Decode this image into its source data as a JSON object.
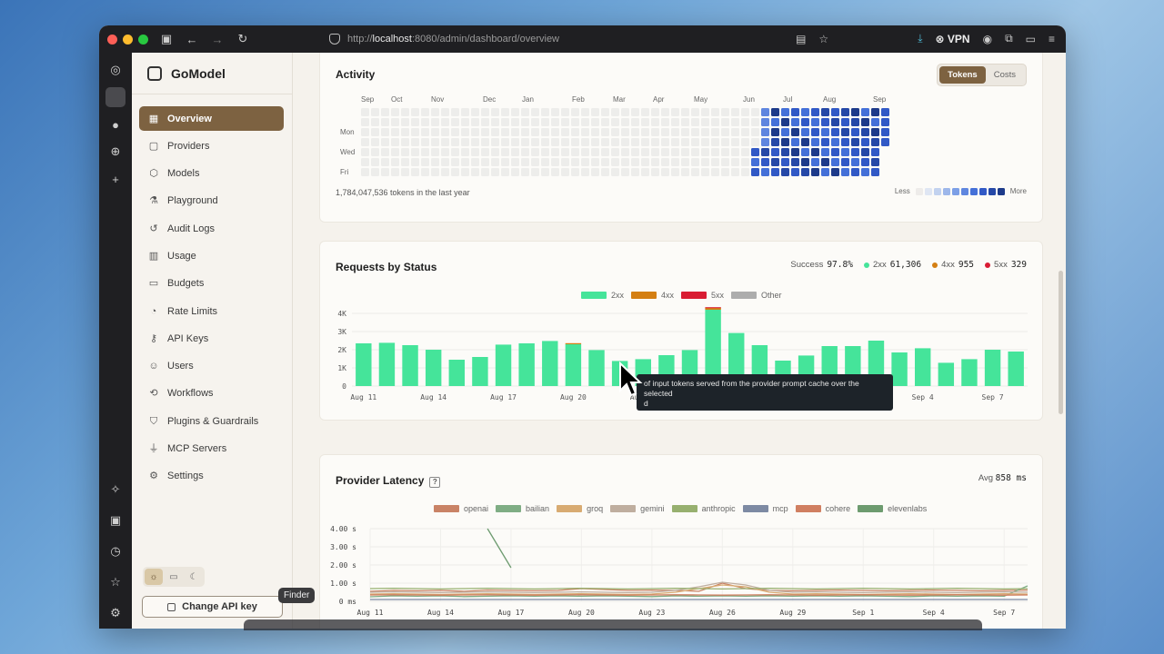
{
  "browser": {
    "url_prefix": "http://",
    "url_host": "localhost",
    "url_rest": ":8080/admin/dashboard/overview",
    "vpn_label": "VPN"
  },
  "app": {
    "name": "GoModel"
  },
  "sidebar": {
    "items": [
      {
        "label": "Overview",
        "icon": "grid-icon",
        "glyph": "▦",
        "active": true
      },
      {
        "label": "Providers",
        "icon": "server-icon",
        "glyph": "▢"
      },
      {
        "label": "Models",
        "icon": "cube-icon",
        "glyph": "⬡"
      },
      {
        "label": "Playground",
        "icon": "flask-icon",
        "glyph": "⚗"
      },
      {
        "label": "Audit Logs",
        "icon": "history-icon",
        "glyph": "↺"
      },
      {
        "label": "Usage",
        "icon": "bar-chart-icon",
        "glyph": "▥"
      },
      {
        "label": "Budgets",
        "icon": "wallet-icon",
        "glyph": "▭"
      },
      {
        "label": "Rate Limits",
        "icon": "gauge-icon",
        "glyph": "◔"
      },
      {
        "label": "API Keys",
        "icon": "key-icon",
        "glyph": "⚷"
      },
      {
        "label": "Users",
        "icon": "users-icon",
        "glyph": "☺"
      },
      {
        "label": "Workflows",
        "icon": "workflow-icon",
        "glyph": "⟲"
      },
      {
        "label": "Plugins & Guardrails",
        "icon": "shield-icon",
        "glyph": "⛉"
      },
      {
        "label": "MCP Servers",
        "icon": "plug-icon",
        "glyph": "⏚"
      },
      {
        "label": "Settings",
        "icon": "gear-icon",
        "glyph": "⚙"
      }
    ],
    "change_api_key_label": "Change API key",
    "finder_tooltip": "Finder"
  },
  "activity": {
    "title": "Activity",
    "toggle": {
      "tokens": "Tokens",
      "costs": "Costs",
      "selected": "Tokens"
    },
    "months": [
      "Sep",
      "Oct",
      "Nov",
      "Dec",
      "Jan",
      "Feb",
      "Mar",
      "Apr",
      "May",
      "Jun",
      "Jul",
      "Aug",
      "Sep"
    ],
    "day_labels": [
      "Mon",
      "Wed",
      "Fri"
    ],
    "total_text": "1,784,047,536 tokens in the last year",
    "legend_less": "Less",
    "legend_more": "More",
    "scale_colors": [
      "#eeecea",
      "#dfe6f3",
      "#c2d2ef",
      "#9db7ea",
      "#7c9fe6",
      "#5f86df",
      "#4470d8",
      "#3159c6",
      "#2548a7",
      "#1d3a8a"
    ],
    "empty_color": "#ededeb"
  },
  "requests": {
    "title": "Requests by Status",
    "summary": {
      "success_label": "Success",
      "success_value": "97.8%",
      "s2xx_label": "2xx",
      "s2xx_value": "61,306",
      "s4xx_label": "4xx",
      "s4xx_value": "955",
      "s5xx_label": "5xx",
      "s5xx_value": "329"
    },
    "colors": {
      "2xx": "#45e49a",
      "4xx": "#d47f13",
      "5xx": "#d91c34",
      "other": "#adadad"
    },
    "tooltip_text": "of input tokens served from the provider prompt cache over the selected",
    "tooltip_tail": "d"
  },
  "latency": {
    "title": "Provider Latency",
    "help": "?",
    "avg_label": "Avg",
    "avg_value": "858 ms"
  },
  "chart_data": [
    {
      "type": "bar",
      "title": "Requests by Status",
      "legend": [
        "2xx",
        "4xx",
        "5xx",
        "Other"
      ],
      "legend_position": "top-center",
      "ylim": [
        0,
        4000
      ],
      "y_ticks": [
        "0",
        "1K",
        "2K",
        "3K",
        "4K"
      ],
      "x_tick_labels": [
        "Aug 11",
        "Aug 14",
        "Aug 17",
        "Aug 20",
        "Aug 23",
        "Aug 26",
        "Aug 29",
        "Sep 1",
        "Sep 4",
        "Sep 7"
      ],
      "series": [
        {
          "name": "2xx",
          "values": [
            2350,
            2380,
            2250,
            2000,
            1450,
            1600,
            2280,
            2350,
            2480,
            2300,
            1980,
            1380,
            1480,
            1700,
            1980,
            4200,
            2920,
            2250,
            1400,
            1680,
            2200,
            2200,
            2500,
            1850,
            2080,
            1280,
            1480,
            2000,
            1900
          ]
        },
        {
          "name": "4xx",
          "values": [
            0,
            0,
            0,
            0,
            0,
            0,
            0,
            0,
            0,
            60,
            0,
            0,
            0,
            0,
            0,
            100,
            0,
            0,
            0,
            0,
            0,
            0,
            0,
            0,
            0,
            0,
            0,
            0,
            0
          ]
        },
        {
          "name": "5xx",
          "values": [
            0,
            0,
            0,
            0,
            0,
            0,
            0,
            0,
            0,
            0,
            0,
            0,
            0,
            0,
            0,
            40,
            0,
            0,
            0,
            0,
            0,
            0,
            0,
            0,
            0,
            0,
            0,
            0,
            0
          ]
        }
      ]
    },
    {
      "type": "line",
      "title": "Provider Latency",
      "legend_position": "top-center",
      "ylim": [
        0,
        4.0
      ],
      "y_ticks": [
        "0 ms",
        "1.00 s",
        "2.00 s",
        "3.00 s",
        "4.00 s"
      ],
      "x_tick_labels": [
        "Aug 11",
        "Aug 14",
        "Aug 17",
        "Aug 20",
        "Aug 23",
        "Aug 26",
        "Aug 29",
        "Sep 1",
        "Sep 4",
        "Sep 7"
      ],
      "series": [
        {
          "name": "openai",
          "color": "#c98366",
          "values": [
            0.55,
            0.6,
            0.58,
            0.6,
            0.55,
            0.62,
            0.6,
            0.58,
            0.6,
            0.7,
            0.65,
            0.6,
            0.62,
            0.6,
            0.55,
            1.0,
            0.7,
            0.6,
            0.58,
            0.6,
            0.62,
            0.6,
            0.58,
            0.6,
            0.62,
            0.6,
            0.58,
            0.6,
            0.62
          ]
        },
        {
          "name": "bailian",
          "color": "#7fad84",
          "values": [
            0.25,
            0.3,
            0.28,
            0.3,
            0.26,
            0.28,
            0.3,
            0.28,
            0.3,
            0.28,
            0.3,
            0.28,
            0.26,
            0.3,
            0.28,
            0.3,
            0.28,
            0.3,
            0.28,
            0.3,
            0.28,
            0.3,
            0.28,
            0.26,
            0.3,
            0.28,
            0.3,
            0.28,
            0.85
          ]
        },
        {
          "name": "groq",
          "color": "#d8ab72",
          "values": [
            0.4,
            0.42,
            0.4,
            0.38,
            0.4,
            0.42,
            0.4,
            0.38,
            0.4,
            0.42,
            0.4,
            0.38,
            0.4,
            0.5,
            0.7,
            0.9,
            0.8,
            0.5,
            0.4,
            0.42,
            0.4,
            0.38,
            0.4,
            0.42,
            0.4,
            0.38,
            0.4,
            0.42,
            0.4
          ]
        },
        {
          "name": "gemini",
          "color": "#bfae9f",
          "values": [
            0.5,
            0.52,
            0.5,
            0.48,
            0.5,
            0.52,
            0.5,
            0.48,
            0.5,
            0.52,
            0.5,
            0.48,
            0.5,
            0.6,
            0.8,
            1.05,
            0.9,
            0.6,
            0.5,
            0.52,
            0.5,
            0.48,
            0.5,
            0.52,
            0.5,
            0.48,
            0.5,
            0.52,
            0.5
          ]
        },
        {
          "name": "anthropic",
          "color": "#97b06f",
          "values": [
            0.7,
            0.72,
            0.7,
            0.68,
            0.7,
            0.72,
            0.7,
            0.68,
            0.7,
            0.72,
            0.7,
            0.68,
            0.7,
            0.72,
            0.7,
            0.68,
            0.7,
            0.72,
            0.7,
            0.68,
            0.7,
            0.72,
            0.7,
            0.68,
            0.7,
            0.72,
            0.7,
            0.68,
            0.7
          ]
        },
        {
          "name": "mcp",
          "color": "#7d8aa3",
          "values": [
            0.1,
            0.1,
            0.1,
            0.1,
            0.1,
            0.1,
            0.1,
            0.1,
            0.1,
            0.1,
            0.1,
            0.1,
            0.1,
            0.1,
            0.1,
            0.1,
            0.1,
            0.1,
            0.1,
            0.1,
            0.1,
            0.1,
            0.1,
            0.1,
            0.1,
            0.1,
            0.1,
            0.1,
            0.1
          ]
        },
        {
          "name": "cohere",
          "color": "#d07f61",
          "values": [
            0.35,
            0.36,
            0.35,
            0.34,
            0.35,
            0.36,
            0.35,
            0.34,
            0.35,
            0.36,
            0.35,
            0.34,
            0.35,
            0.36,
            0.35,
            0.34,
            0.35,
            0.36,
            0.35,
            0.34,
            0.35,
            0.36,
            0.35,
            0.34,
            0.35,
            0.36,
            0.35,
            0.34,
            0.35
          ]
        },
        {
          "name": "elevenlabs",
          "color": "#6d9b6f",
          "values": [
            null,
            null,
            null,
            null,
            null,
            4.0,
            1.85,
            null,
            null,
            null,
            null,
            null,
            null,
            null,
            null,
            null,
            null,
            null,
            null,
            null,
            null,
            null,
            null,
            null,
            null,
            null,
            null,
            null,
            null
          ]
        }
      ]
    }
  ]
}
